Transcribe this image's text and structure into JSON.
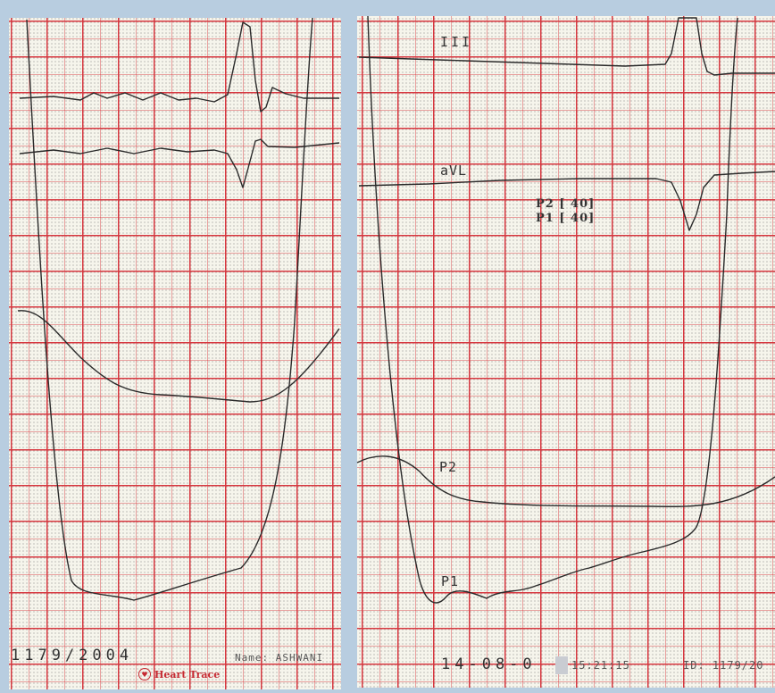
{
  "left_strip": {
    "date": "1179/2004",
    "name": "Name: ASHWANI",
    "brand": "Heart Trace"
  },
  "right_strip": {
    "lead_iii": "III",
    "lead_avl": "aVL",
    "p2_setting": "P2 [ 40]",
    "p1_setting": "P1 [ 40]",
    "p2_label": "P2",
    "p1_label": "P1",
    "date": "14-08-0",
    "time": "15:21:15",
    "id": "ID: 1179/20"
  },
  "colors": {
    "grid": "#d7373f",
    "paper": "#f6f5ec",
    "trace": "#2a2a2a",
    "brand": "#c62a32"
  }
}
